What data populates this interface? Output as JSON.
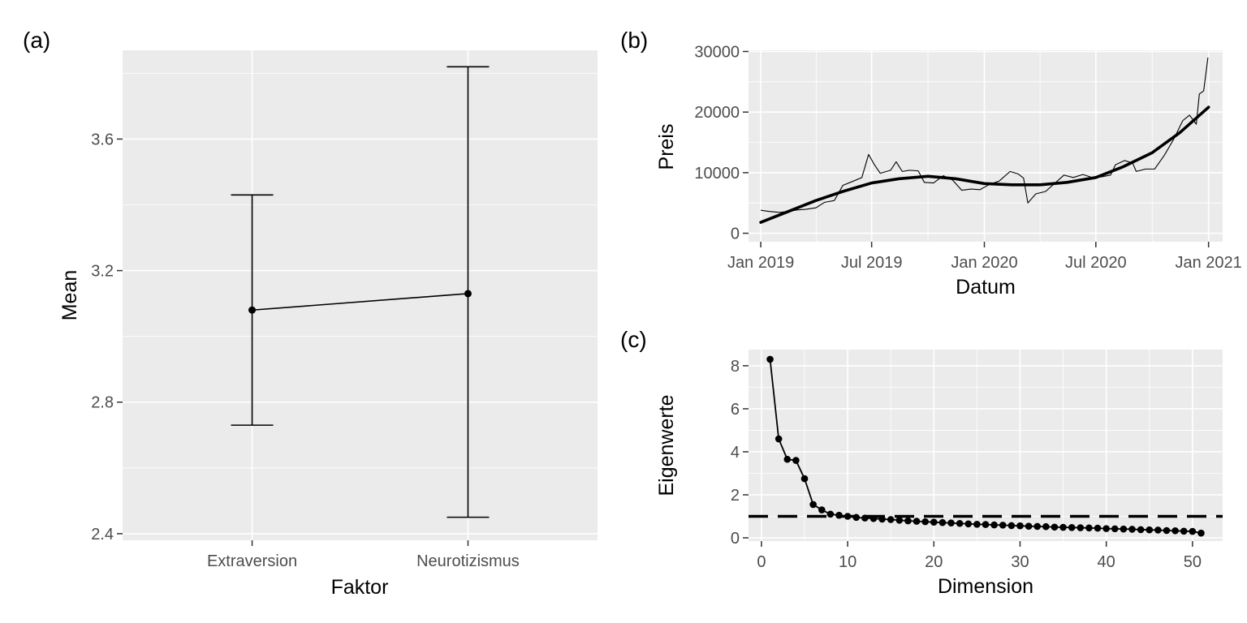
{
  "panel_labels": [
    "(a)",
    "(b)",
    "(c)"
  ],
  "chart_data": [
    {
      "type": "errorbar-line",
      "panel": "(a)",
      "xlabel": "Faktor",
      "ylabel": "Mean",
      "categories": [
        "Extraversion",
        "Neurotizismus"
      ],
      "mean": [
        3.08,
        3.13
      ],
      "lower": [
        2.73,
        2.45
      ],
      "upper": [
        3.43,
        3.82
      ],
      "yticks": [
        2.4,
        2.8,
        3.2,
        3.6
      ],
      "ytick_labels": [
        "2.4",
        "2.8",
        "3.2",
        "3.6"
      ],
      "ylim": [
        2.38,
        3.87
      ],
      "grid": true
    },
    {
      "type": "line",
      "panel": "(b)",
      "xlabel": "Datum",
      "ylabel": "Preis",
      "xticks": [
        "2019-01-01",
        "2019-07-01",
        "2020-01-01",
        "2020-07-01",
        "2021-01-01"
      ],
      "xtick_labels": [
        "Jan 2019",
        "Jul 2019",
        "Jan 2020",
        "Jul 2020",
        "Jan 2021"
      ],
      "yticks": [
        0,
        10000,
        20000,
        30000
      ],
      "ytick_labels": [
        "0",
        "10000",
        "20000",
        "30000"
      ],
      "xlim": [
        "2018-12-12",
        "2021-01-24"
      ],
      "ylim": [
        -1400,
        30200
      ],
      "grid": true,
      "series": [
        {
          "style": "thin",
          "points": [
            [
              "2019-01-01",
              3800
            ],
            [
              "2019-01-15",
              3600
            ],
            [
              "2019-02-01",
              3450
            ],
            [
              "2019-02-15",
              3600
            ],
            [
              "2019-03-01",
              3850
            ],
            [
              "2019-03-15",
              3950
            ],
            [
              "2019-04-01",
              4200
            ],
            [
              "2019-04-15",
              5100
            ],
            [
              "2019-05-01",
              5400
            ],
            [
              "2019-05-15",
              7900
            ],
            [
              "2019-06-01",
              8600
            ],
            [
              "2019-06-15",
              9200
            ],
            [
              "2019-06-26",
              13000
            ],
            [
              "2019-07-05",
              11400
            ],
            [
              "2019-07-15",
              9900
            ],
            [
              "2019-08-01",
              10400
            ],
            [
              "2019-08-10",
              11800
            ],
            [
              "2019-08-20",
              10200
            ],
            [
              "2019-09-01",
              10400
            ],
            [
              "2019-09-15",
              10300
            ],
            [
              "2019-09-25",
              8400
            ],
            [
              "2019-10-10",
              8300
            ],
            [
              "2019-10-26",
              9500
            ],
            [
              "2019-11-10",
              8800
            ],
            [
              "2019-11-25",
              7100
            ],
            [
              "2019-12-10",
              7300
            ],
            [
              "2019-12-25",
              7200
            ],
            [
              "2020-01-10",
              8100
            ],
            [
              "2020-01-25",
              8600
            ],
            [
              "2020-02-12",
              10200
            ],
            [
              "2020-02-25",
              9800
            ],
            [
              "2020-03-05",
              9100
            ],
            [
              "2020-03-12",
              5000
            ],
            [
              "2020-03-25",
              6500
            ],
            [
              "2020-04-10",
              6900
            ],
            [
              "2020-04-30",
              8700
            ],
            [
              "2020-05-10",
              9600
            ],
            [
              "2020-05-25",
              9200
            ],
            [
              "2020-06-10",
              9700
            ],
            [
              "2020-06-25",
              9200
            ],
            [
              "2020-07-10",
              9300
            ],
            [
              "2020-07-25",
              9600
            ],
            [
              "2020-08-02",
              11300
            ],
            [
              "2020-08-17",
              12000
            ],
            [
              "2020-08-30",
              11600
            ],
            [
              "2020-09-05",
              10200
            ],
            [
              "2020-09-20",
              10600
            ],
            [
              "2020-10-05",
              10600
            ],
            [
              "2020-10-21",
              12900
            ],
            [
              "2020-11-05",
              15500
            ],
            [
              "2020-11-20",
              18600
            ],
            [
              "2020-12-01",
              19500
            ],
            [
              "2020-12-12",
              18000
            ],
            [
              "2020-12-17",
              23000
            ],
            [
              "2020-12-24",
              23500
            ],
            [
              "2020-12-31",
              29000
            ]
          ]
        },
        {
          "style": "smooth",
          "points": [
            [
              "2019-01-01",
              1800
            ],
            [
              "2019-02-15",
              3600
            ],
            [
              "2019-04-01",
              5400
            ],
            [
              "2019-05-15",
              6900
            ],
            [
              "2019-07-01",
              8300
            ],
            [
              "2019-08-15",
              9000
            ],
            [
              "2019-10-01",
              9400
            ],
            [
              "2019-11-15",
              9000
            ],
            [
              "2020-01-01",
              8200
            ],
            [
              "2020-02-15",
              8000
            ],
            [
              "2020-04-01",
              8000
            ],
            [
              "2020-05-15",
              8400
            ],
            [
              "2020-07-01",
              9200
            ],
            [
              "2020-08-15",
              11000
            ],
            [
              "2020-10-01",
              13300
            ],
            [
              "2020-11-15",
              16600
            ],
            [
              "2021-01-01",
              20800
            ]
          ]
        }
      ]
    },
    {
      "type": "scatter-line",
      "panel": "(c)",
      "xlabel": "Dimension",
      "ylabel": "Eigenwerte",
      "x": [
        1,
        2,
        3,
        4,
        5,
        6,
        7,
        8,
        9,
        10,
        11,
        12,
        13,
        14,
        15,
        16,
        17,
        18,
        19,
        20,
        21,
        22,
        23,
        24,
        25,
        26,
        27,
        28,
        29,
        30,
        31,
        32,
        33,
        34,
        35,
        36,
        37,
        38,
        39,
        40,
        41,
        42,
        43,
        44,
        45,
        46,
        47,
        48,
        49,
        50,
        51
      ],
      "y": [
        8.3,
        4.6,
        3.65,
        3.6,
        2.75,
        1.55,
        1.3,
        1.1,
        1.05,
        1.0,
        0.95,
        0.92,
        0.9,
        0.87,
        0.85,
        0.82,
        0.79,
        0.77,
        0.75,
        0.73,
        0.71,
        0.69,
        0.67,
        0.65,
        0.63,
        0.62,
        0.6,
        0.59,
        0.57,
        0.56,
        0.54,
        0.53,
        0.52,
        0.5,
        0.49,
        0.48,
        0.47,
        0.46,
        0.45,
        0.43,
        0.42,
        0.41,
        0.4,
        0.38,
        0.37,
        0.36,
        0.34,
        0.33,
        0.31,
        0.3,
        0.22
      ],
      "reference_line": 1,
      "reference_style": "dashed",
      "xticks": [
        0,
        10,
        20,
        30,
        40,
        50
      ],
      "xtick_labels": [
        "0",
        "10",
        "20",
        "30",
        "40",
        "50"
      ],
      "yticks": [
        0,
        2,
        4,
        6,
        8
      ],
      "ytick_labels": [
        "0",
        "2",
        "4",
        "6",
        "8"
      ],
      "xlim": [
        -1.5,
        53.5
      ],
      "ylim": [
        -0.15,
        8.75
      ],
      "grid": true
    }
  ]
}
